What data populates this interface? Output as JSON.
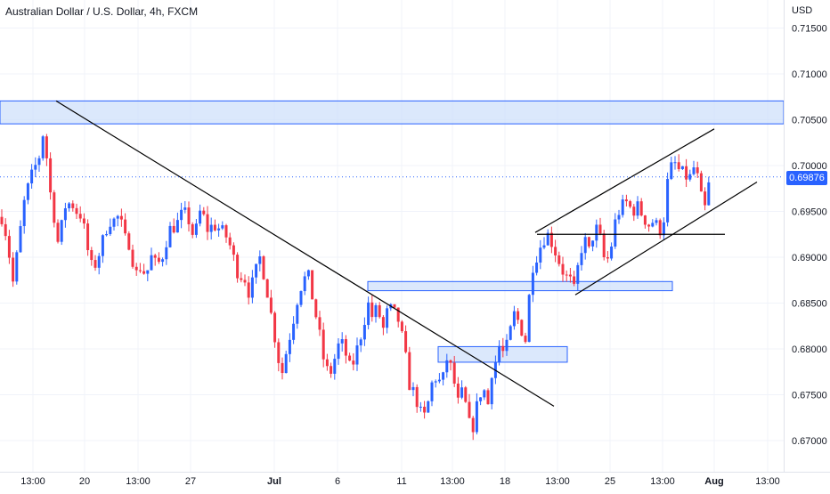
{
  "chart_title": "Australian Dollar / U.S. Dollar, 4h, FXCM",
  "currency": "USD",
  "last_price_label": "0.69876",
  "colors": {
    "up": "#2962ff",
    "down": "#f23645",
    "zone_fill": "#cfe0fb",
    "zone_stroke": "#2962ff",
    "grid": "#f0f3fa",
    "axis_text": "#131722",
    "line": "#000000"
  },
  "chart_data": {
    "type": "candlestick",
    "ylim": [
      0.6685,
      0.7175
    ],
    "y_ticks": [
      "0.67000",
      "0.67500",
      "0.68000",
      "0.68500",
      "0.69000",
      "0.69500",
      "0.70000",
      "0.70500",
      "0.71000",
      "0.71500"
    ],
    "x_ticks": [
      "13:00",
      "20",
      "13:00",
      "27",
      "Jul",
      "6",
      "11",
      "13:00",
      "18",
      "13:00",
      "25",
      "13:00",
      "Aug",
      "13:00"
    ],
    "last_price": 0.69876,
    "anchors": [
      [
        0,
        0.695
      ],
      [
        5,
        0.6935
      ],
      [
        10,
        0.6905
      ],
      [
        15,
        0.687
      ],
      [
        20,
        0.691
      ],
      [
        28,
        0.6965
      ],
      [
        36,
        0.699
      ],
      [
        44,
        0.701
      ],
      [
        50,
        0.7045
      ],
      [
        54,
        0.6985
      ],
      [
        60,
        0.695
      ],
      [
        66,
        0.691
      ],
      [
        72,
        0.6955
      ],
      [
        80,
        0.696
      ],
      [
        86,
        0.695
      ],
      [
        92,
        0.6945
      ],
      [
        98,
        0.691
      ],
      [
        104,
        0.6885
      ],
      [
        110,
        0.69
      ],
      [
        116,
        0.692
      ],
      [
        122,
        0.694
      ],
      [
        128,
        0.694
      ],
      [
        134,
        0.6945
      ],
      [
        140,
        0.692
      ],
      [
        146,
        0.6915
      ],
      [
        152,
        0.688
      ],
      [
        158,
        0.689
      ],
      [
        164,
        0.688
      ],
      [
        170,
        0.69
      ],
      [
        176,
        0.689
      ],
      [
        182,
        0.69
      ],
      [
        190,
        0.693
      ],
      [
        198,
        0.6935
      ],
      [
        206,
        0.695
      ],
      [
        212,
        0.694
      ],
      [
        218,
        0.692
      ],
      [
        226,
        0.6955
      ],
      [
        232,
        0.693
      ],
      [
        240,
        0.6935
      ],
      [
        248,
        0.693
      ],
      [
        256,
        0.692
      ],
      [
        262,
        0.69
      ],
      [
        268,
        0.688
      ],
      [
        274,
        0.688
      ],
      [
        280,
        0.686
      ],
      [
        286,
        0.688
      ],
      [
        292,
        0.69
      ],
      [
        298,
        0.6875
      ],
      [
        304,
        0.684
      ],
      [
        310,
        0.6805
      ],
      [
        316,
        0.677
      ],
      [
        322,
        0.68
      ],
      [
        328,
        0.6825
      ],
      [
        334,
        0.6855
      ],
      [
        340,
        0.6875
      ],
      [
        346,
        0.688
      ],
      [
        352,
        0.685
      ],
      [
        358,
        0.682
      ],
      [
        364,
        0.6785
      ],
      [
        370,
        0.677
      ],
      [
        376,
        0.679
      ],
      [
        382,
        0.681
      ],
      [
        388,
        0.6795
      ],
      [
        394,
        0.6775
      ],
      [
        398,
        0.679
      ],
      [
        404,
        0.681
      ],
      [
        410,
        0.6835
      ],
      [
        414,
        0.685
      ],
      [
        418,
        0.6835
      ],
      [
        424,
        0.6845
      ],
      [
        430,
        0.682
      ],
      [
        436,
        0.6845
      ],
      [
        442,
        0.684
      ],
      [
        448,
        0.683
      ],
      [
        454,
        0.68
      ],
      [
        460,
        0.676
      ],
      [
        466,
        0.675
      ],
      [
        472,
        0.673
      ],
      [
        478,
        0.6725
      ],
      [
        484,
        0.676
      ],
      [
        490,
        0.677
      ],
      [
        496,
        0.676
      ],
      [
        502,
        0.679
      ],
      [
        508,
        0.6775
      ],
      [
        514,
        0.674
      ],
      [
        520,
        0.6755
      ],
      [
        526,
        0.672
      ],
      [
        530,
        0.671
      ],
      [
        536,
        0.674
      ],
      [
        542,
        0.676
      ],
      [
        548,
        0.674
      ],
      [
        552,
        0.6775
      ],
      [
        558,
        0.679
      ],
      [
        562,
        0.681
      ],
      [
        566,
        0.679
      ],
      [
        572,
        0.6815
      ],
      [
        578,
        0.684
      ],
      [
        584,
        0.6825
      ],
      [
        590,
        0.681
      ],
      [
        594,
        0.6855
      ],
      [
        598,
        0.689
      ],
      [
        604,
        0.6905
      ],
      [
        610,
        0.692
      ],
      [
        616,
        0.6925
      ],
      [
        622,
        0.691
      ],
      [
        628,
        0.6895
      ],
      [
        634,
        0.688
      ],
      [
        640,
        0.6875
      ],
      [
        646,
        0.686
      ],
      [
        650,
        0.69
      ],
      [
        656,
        0.692
      ],
      [
        662,
        0.6905
      ],
      [
        668,
        0.6935
      ],
      [
        674,
        0.692
      ],
      [
        680,
        0.689
      ],
      [
        686,
        0.691
      ],
      [
        692,
        0.6945
      ],
      [
        698,
        0.6955
      ],
      [
        704,
        0.696
      ],
      [
        710,
        0.695
      ],
      [
        716,
        0.6955
      ],
      [
        722,
        0.6945
      ],
      [
        728,
        0.6935
      ],
      [
        734,
        0.694
      ],
      [
        740,
        0.693
      ],
      [
        744,
        0.693
      ],
      [
        750,
        0.6985
      ],
      [
        756,
        0.7005
      ],
      [
        762,
        0.6995
      ],
      [
        768,
        0.699
      ],
      [
        774,
        0.6985
      ],
      [
        780,
        0.7
      ],
      [
        786,
        0.6975
      ],
      [
        790,
        0.6945
      ],
      [
        794,
        0.6965
      ],
      [
        797,
        0.69876
      ]
    ],
    "annotations": {
      "zones": [
        {
          "label": "resistance-zone-top",
          "x0": 0,
          "x1": 880,
          "y0": 0.70455,
          "y1": 0.70705
        },
        {
          "label": "demand-zone-mid",
          "x0": 413,
          "x1": 755,
          "y0": 0.68635,
          "y1": 0.68735
        },
        {
          "label": "demand-zone-low",
          "x0": 492,
          "x1": 637,
          "y0": 0.67855,
          "y1": 0.68025
        }
      ],
      "lines": [
        {
          "label": "downtrend-line",
          "x0": 63,
          "y0": 0.70705,
          "x1": 622,
          "y1": 0.67375
        },
        {
          "label": "channel-upper-line",
          "x0": 601,
          "y0": 0.6927,
          "x1": 802,
          "y1": 0.704
        },
        {
          "label": "channel-lower-line",
          "x0": 646,
          "y0": 0.6859,
          "x1": 850,
          "y1": 0.6982
        },
        {
          "label": "horizontal-support-line",
          "x0": 603,
          "y0": 0.6925,
          "x1": 814,
          "y1": 0.6925
        }
      ]
    }
  }
}
